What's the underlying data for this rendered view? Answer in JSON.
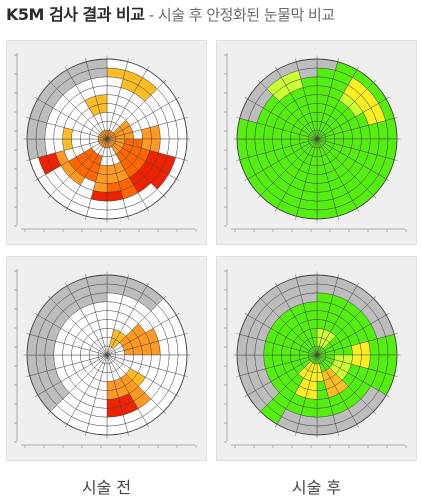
{
  "title": {
    "bold": "K5M 검사 결과 비교",
    "light": " - 시술 후 안정화된 눈물막 비교"
  },
  "captions": {
    "before": "시술 전",
    "after": "시술 후"
  },
  "diagram": {
    "rings": 9,
    "sectors": 24,
    "colors": {
      "grid": "#444444",
      "empty": "#ffffff",
      "gray": "#bdbdbd",
      "yellow": "#ffee22",
      "light_orange": "#ffbb22",
      "orange": "#ff9922",
      "dark_orange": "#ff6600",
      "red": "#ee2200",
      "green": "#55ee11",
      "yellow_green": "#ccff33"
    },
    "maps": [
      {
        "id": "top-left",
        "base": "empty",
        "cells": [
          {
            "r": [
              7,
              8
            ],
            "s": [
              17,
              23
            ],
            "c": "gray"
          },
          {
            "r": [
              0,
              3
            ],
            "s": [
              0,
              23
            ],
            "c": "empty"
          },
          {
            "r": [
              1,
              2
            ],
            "s": [
              6,
              9
            ],
            "c": "orange"
          },
          {
            "r": [
              2,
              4
            ],
            "s": [
              6,
              9
            ],
            "c": "dark_orange"
          },
          {
            "r": [
              3,
              5
            ],
            "s": [
              10,
              12
            ],
            "c": "orange"
          },
          {
            "r": [
              2,
              4
            ],
            "s": [
              13,
              15
            ],
            "c": "dark_orange"
          },
          {
            "r": [
              1,
              2
            ],
            "s": [
              3,
              5
            ],
            "c": "orange"
          },
          {
            "r": [
              5,
              6
            ],
            "s": [
              7,
              9
            ],
            "c": "red"
          },
          {
            "r": [
              6,
              7
            ],
            "s": [
              7,
              8
            ],
            "c": "red"
          },
          {
            "r": [
              5,
              6
            ],
            "s": [
              10,
              11
            ],
            "c": "dark_orange"
          },
          {
            "r": [
              6,
              6
            ],
            "s": [
              11,
              12
            ],
            "c": "red"
          },
          {
            "r": [
              4,
              5
            ],
            "s": [
              5,
              6
            ],
            "c": "orange"
          },
          {
            "r": [
              3,
              4
            ],
            "s": [
              22,
              23
            ],
            "c": "light_orange"
          },
          {
            "r": [
              6,
              7
            ],
            "s": [
              1,
              2
            ],
            "c": "light_orange"
          },
          {
            "r": [
              6,
              7
            ],
            "s": [
              16,
              16
            ],
            "c": "red"
          },
          {
            "r": [
              5,
              5
            ],
            "s": [
              14,
              16
            ],
            "c": "orange"
          },
          {
            "r": [
              7,
              7
            ],
            "s": [
              0,
              0
            ],
            "c": "light_orange"
          },
          {
            "r": [
              4,
              4
            ],
            "s": [
              17,
              18
            ],
            "c": "light_orange"
          },
          {
            "r": [
              0,
              0
            ],
            "s": [
              0,
              23
            ],
            "c": "orange"
          }
        ]
      },
      {
        "id": "top-right",
        "base": "green",
        "cells": [
          {
            "r": [
              7,
              8
            ],
            "s": [
              19,
              23
            ],
            "c": "gray"
          },
          {
            "r": [
              8,
              8
            ],
            "s": [
              0,
              0
            ],
            "c": "gray"
          },
          {
            "r": [
              6,
              7
            ],
            "s": [
              2,
              4
            ],
            "c": "yellow"
          },
          {
            "r": [
              5,
              5
            ],
            "s": [
              2,
              3
            ],
            "c": "yellow_green"
          },
          {
            "r": [
              6,
              7
            ],
            "s": [
              21,
              22
            ],
            "c": "yellow_green"
          }
        ]
      },
      {
        "id": "bottom-left",
        "base": "empty",
        "cells": [
          {
            "r": [
              6,
              8
            ],
            "s": [
              15,
              23
            ],
            "c": "gray"
          },
          {
            "r": [
              7,
              8
            ],
            "s": [
              0,
              2
            ],
            "c": "gray"
          },
          {
            "r": [
              3,
              6
            ],
            "s": [
              9,
              11
            ],
            "c": "orange"
          },
          {
            "r": [
              5,
              6
            ],
            "s": [
              10,
              11
            ],
            "c": "red"
          },
          {
            "r": [
              2,
              4
            ],
            "s": [
              3,
              5
            ],
            "c": "orange"
          },
          {
            "r": [
              4,
              5
            ],
            "s": [
              4,
              5
            ],
            "c": "orange"
          },
          {
            "r": [
              1,
              2
            ],
            "s": [
              1,
              2
            ],
            "c": "light_orange"
          },
          {
            "r": [
              3,
              4
            ],
            "s": [
              8,
              8
            ],
            "c": "light_orange"
          }
        ]
      },
      {
        "id": "bottom-right",
        "base": "green",
        "cells": [
          {
            "r": [
              6,
              8
            ],
            "s": [
              15,
              23
            ],
            "c": "gray"
          },
          {
            "r": [
              7,
              8
            ],
            "s": [
              0,
              4
            ],
            "c": "gray"
          },
          {
            "r": [
              7,
              8
            ],
            "s": [
              8,
              13
            ],
            "c": "gray"
          },
          {
            "r": [
              1,
              2
            ],
            "s": [
              11,
              14
            ],
            "c": "yellow"
          },
          {
            "r": [
              2,
              3
            ],
            "s": [
              6,
              8
            ],
            "c": "yellow_green"
          },
          {
            "r": [
              2,
              4
            ],
            "s": [
              9,
              10
            ],
            "c": "light_orange"
          },
          {
            "r": [
              3,
              4
            ],
            "s": [
              12,
              13
            ],
            "c": "yellow"
          },
          {
            "r": [
              4,
              5
            ],
            "s": [
              5,
              6
            ],
            "c": "yellow"
          },
          {
            "r": [
              1,
              2
            ],
            "s": [
              0,
              2
            ],
            "c": "yellow_green"
          }
        ]
      }
    ]
  }
}
